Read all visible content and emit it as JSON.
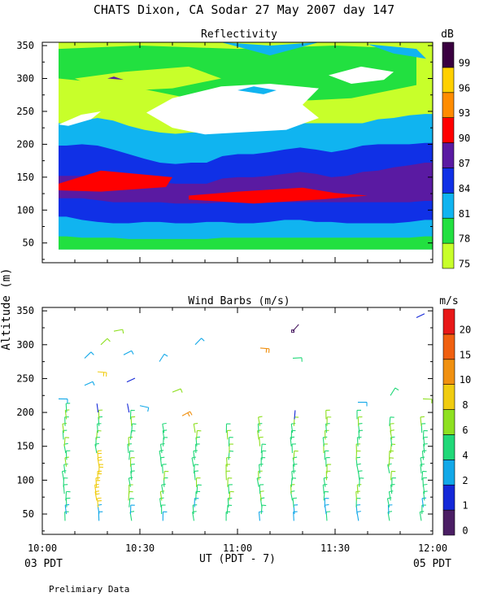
{
  "title": "CHATS Dixon, CA  Sodar  27 May 2007  day 147",
  "y_axis_label": "Altitude (m)",
  "x_axis_label": "UT  (PDT - 7)",
  "start_local": "03 PDT",
  "end_local": "05 PDT",
  "footer_note": "Prelimiary Data",
  "colors": {
    "r75": "#c8ff2a",
    "r78": "#22e040",
    "r81": "#10b4f0",
    "r84": "#1030e6",
    "r87": "#5a1aa2",
    "r90": "#ff0000",
    "r93": "#ff8c00",
    "r96": "#ffd000",
    "r99": "#3a0040",
    "w0": "#4b1e64",
    "w1": "#1428d8",
    "w2": "#12a8e8",
    "w4": "#20d878",
    "w6": "#8ee020",
    "w8": "#f0cc10",
    "w10": "#f09010",
    "w15": "#f06010",
    "w20": "#e81818"
  },
  "chart_data": [
    {
      "type": "heatmap",
      "title": "Reflectivity",
      "colorbar_unit": "dB",
      "colorbar_ticks": [
        "75",
        "78",
        "81",
        "84",
        "87",
        "90",
        "93",
        "96",
        "99"
      ],
      "x_ticks": [
        "10:00",
        "10:30",
        "11:00",
        "11:30",
        "12:00"
      ],
      "y_ticks": [
        "50",
        "100",
        "150",
        "200",
        "250",
        "300",
        "350"
      ],
      "xlim": [
        "10:00",
        "12:00"
      ],
      "ylim": [
        20,
        355
      ],
      "cell_minutes": 5,
      "x_start": "10:05",
      "altitudes": [
        40,
        70,
        100,
        130,
        160,
        190,
        220,
        250,
        280,
        310,
        340
      ],
      "bands": [
        {
          "top": [
            60,
            58,
            58,
            58,
            56,
            56,
            56,
            56,
            56,
            56,
            58,
            58,
            58,
            58,
            58,
            58,
            58,
            58,
            58,
            58,
            58,
            58,
            58,
            60
          ],
          "dB": 78
        },
        {
          "top": [
            90,
            85,
            82,
            80,
            80,
            82,
            82,
            80,
            80,
            82,
            82,
            80,
            80,
            82,
            85,
            85,
            82,
            82,
            80,
            80,
            80,
            80,
            82,
            85
          ],
          "dB": 81
        },
        {
          "top": [
            118,
            118,
            115,
            112,
            112,
            112,
            112,
            110,
            110,
            110,
            112,
            112,
            112,
            112,
            112,
            112,
            112,
            112,
            112,
            112,
            112,
            112,
            112,
            114
          ],
          "dB": 84
        },
        {
          "top": [
            152,
            152,
            150,
            148,
            148,
            145,
            142,
            140,
            140,
            140,
            148,
            150,
            150,
            152,
            155,
            158,
            155,
            150,
            152,
            158,
            160,
            165,
            168,
            172
          ],
          "dB": 87
        },
        {
          "top": [
            198,
            200,
            198,
            192,
            185,
            178,
            172,
            170,
            172,
            172,
            182,
            185,
            185,
            188,
            192,
            195,
            192,
            188,
            192,
            198,
            200,
            200,
            200,
            202
          ],
          "dB": 84
        },
        {
          "top": [
            232,
            236,
            240,
            236,
            228,
            222,
            218,
            216,
            218,
            218,
            225,
            232,
            238,
            238,
            234,
            232,
            232,
            232,
            232,
            232,
            238,
            240,
            244,
            246
          ],
          "dB": 81
        },
        {
          "top": [
            355,
            355,
            355,
            355,
            355,
            355,
            355,
            355,
            355,
            355,
            355,
            355,
            355,
            355,
            355,
            355,
            355,
            355,
            355,
            355,
            355,
            355,
            355,
            355
          ],
          "dB": 75
        }
      ],
      "patches": [
        {
          "dB": 90,
          "points": [
            [
              "10:05",
              140
            ],
            [
              "10:18",
              160
            ],
            [
              "10:40",
              150
            ],
            [
              "10:38",
              135
            ],
            [
              "10:18",
              128
            ],
            [
              "10:05",
              130
            ]
          ]
        },
        {
          "dB": 90,
          "points": [
            [
              "10:45",
              122
            ],
            [
              "11:00",
              128
            ],
            [
              "11:20",
              134
            ],
            [
              "11:30",
              126
            ],
            [
              "11:40",
              122
            ],
            [
              "11:25",
              116
            ],
            [
              "11:05",
              110
            ],
            [
              "10:45",
              116
            ]
          ]
        },
        {
          "dB": 78,
          "points": [
            [
              "10:05",
              345
            ],
            [
              "10:30",
              350
            ],
            [
              "11:00",
              345
            ],
            [
              "11:30",
              350
            ],
            [
              "11:55",
              345
            ],
            [
              "11:55",
              290
            ],
            [
              "11:35",
              270
            ],
            [
              "11:15",
              265
            ],
            [
              "11:00",
              245
            ],
            [
              "10:45",
              270
            ],
            [
              "10:25",
              290
            ],
            [
              "10:05",
              300
            ]
          ]
        },
        {
          "dB": 75,
          "points": [
            [
              "10:10",
              300
            ],
            [
              "10:25",
              310
            ],
            [
              "10:45",
              318
            ],
            [
              "10:55",
              300
            ],
            [
              "10:40",
              285
            ],
            [
              "10:20",
              280
            ]
          ]
        },
        {
          "dB": 0,
          "points": [
            [
              "10:40",
              270
            ],
            [
              "10:55",
              288
            ],
            [
              "11:10",
              292
            ],
            [
              "11:25",
              285
            ],
            [
              "11:20",
              260
            ],
            [
              "11:25",
              240
            ],
            [
              "11:15",
              222
            ],
            [
              "10:50",
              215
            ],
            [
              "10:40",
              225
            ],
            [
              "10:32",
              248
            ]
          ]
        },
        {
          "dB": 0,
          "points": [
            [
              "10:05",
              230
            ],
            [
              "10:12",
              245
            ],
            [
              "10:18",
              250
            ],
            [
              "10:15",
              238
            ],
            [
              "10:08",
              228
            ]
          ]
        },
        {
          "dB": 0,
          "points": [
            [
              "11:28",
              305
            ],
            [
              "11:38",
              318
            ],
            [
              "11:48",
              310
            ],
            [
              "11:45",
              298
            ],
            [
              "11:35",
              292
            ]
          ]
        },
        {
          "dB": 81,
          "points": [
            [
              "10:55",
              355
            ],
            [
              "11:10",
              350
            ],
            [
              "11:25",
              355
            ],
            [
              "11:10",
              335
            ]
          ]
        },
        {
          "dB": 81,
          "points": [
            [
              "11:40",
              352
            ],
            [
              "11:55",
              345
            ],
            [
              "11:58",
              330
            ],
            [
              "11:48",
              338
            ]
          ]
        },
        {
          "dB": 81,
          "points": [
            [
              "11:05",
              288
            ],
            [
              "11:12",
              282
            ],
            [
              "11:08",
              276
            ],
            [
              "11:00",
              282
            ]
          ]
        },
        {
          "dB": 87,
          "points": [
            [
              "10:20",
              300
            ],
            [
              "10:25",
              298
            ],
            [
              "10:22",
              303
            ]
          ]
        }
      ]
    },
    {
      "type": "scatter",
      "title": "Wind Barbs (m/s)",
      "colorbar_unit": "m/s",
      "colorbar_ticks": [
        "0",
        "1",
        "2",
        "4",
        "6",
        "8",
        "10",
        "15",
        "20"
      ],
      "x_ticks": [
        "10:00",
        "10:30",
        "11:00",
        "11:30",
        "12:00"
      ],
      "y_ticks": [
        "50",
        "100",
        "150",
        "200",
        "250",
        "300",
        "350"
      ],
      "xlim": [
        "10:00",
        "12:00"
      ],
      "ylim": [
        20,
        355
      ],
      "columns": [
        "10:07",
        "10:17",
        "10:27",
        "10:37",
        "10:47",
        "10:57",
        "11:07",
        "11:17",
        "11:27",
        "11:37",
        "11:47",
        "11:57"
      ],
      "column_minutes": [
        7,
        17,
        27,
        37,
        47,
        57,
        67,
        77,
        87,
        97,
        107,
        117
      ],
      "column_tops": [
        200,
        200,
        200,
        170,
        170,
        170,
        180,
        190,
        190,
        190,
        185,
        180
      ],
      "levels": [
        40,
        50,
        60,
        70,
        80,
        90,
        100,
        110,
        120,
        130,
        140,
        150,
        160,
        170,
        180,
        190,
        200
      ],
      "extra_barbs": [
        {
          "x": "10:05",
          "alt": 220,
          "speed": 2
        },
        {
          "x": "10:13",
          "alt": 240,
          "speed": 2
        },
        {
          "x": "10:13",
          "alt": 280,
          "speed": 2
        },
        {
          "x": "10:17",
          "alt": 260,
          "speed": 8
        },
        {
          "x": "10:18",
          "alt": 300,
          "speed": 6
        },
        {
          "x": "10:22",
          "alt": 320,
          "speed": 6
        },
        {
          "x": "10:25",
          "alt": 285,
          "speed": 2
        },
        {
          "x": "10:26",
          "alt": 245,
          "speed": 1
        },
        {
          "x": "10:30",
          "alt": 210,
          "speed": 2
        },
        {
          "x": "10:36",
          "alt": 275,
          "speed": 2
        },
        {
          "x": "10:40",
          "alt": 230,
          "speed": 6
        },
        {
          "x": "10:43",
          "alt": 195,
          "speed": 10
        },
        {
          "x": "10:47",
          "alt": 300,
          "speed": 2
        },
        {
          "x": "11:07",
          "alt": 295,
          "speed": 10
        },
        {
          "x": "11:17",
          "alt": 280,
          "speed": 4
        },
        {
          "x": "11:17",
          "alt": 320,
          "speed": 0
        },
        {
          "x": "11:37",
          "alt": 215,
          "speed": 2
        },
        {
          "x": "11:47",
          "alt": 225,
          "speed": 4
        },
        {
          "x": "11:55",
          "alt": 340,
          "speed": 1
        },
        {
          "x": "11:57",
          "alt": 220,
          "speed": 6
        }
      ]
    }
  ]
}
